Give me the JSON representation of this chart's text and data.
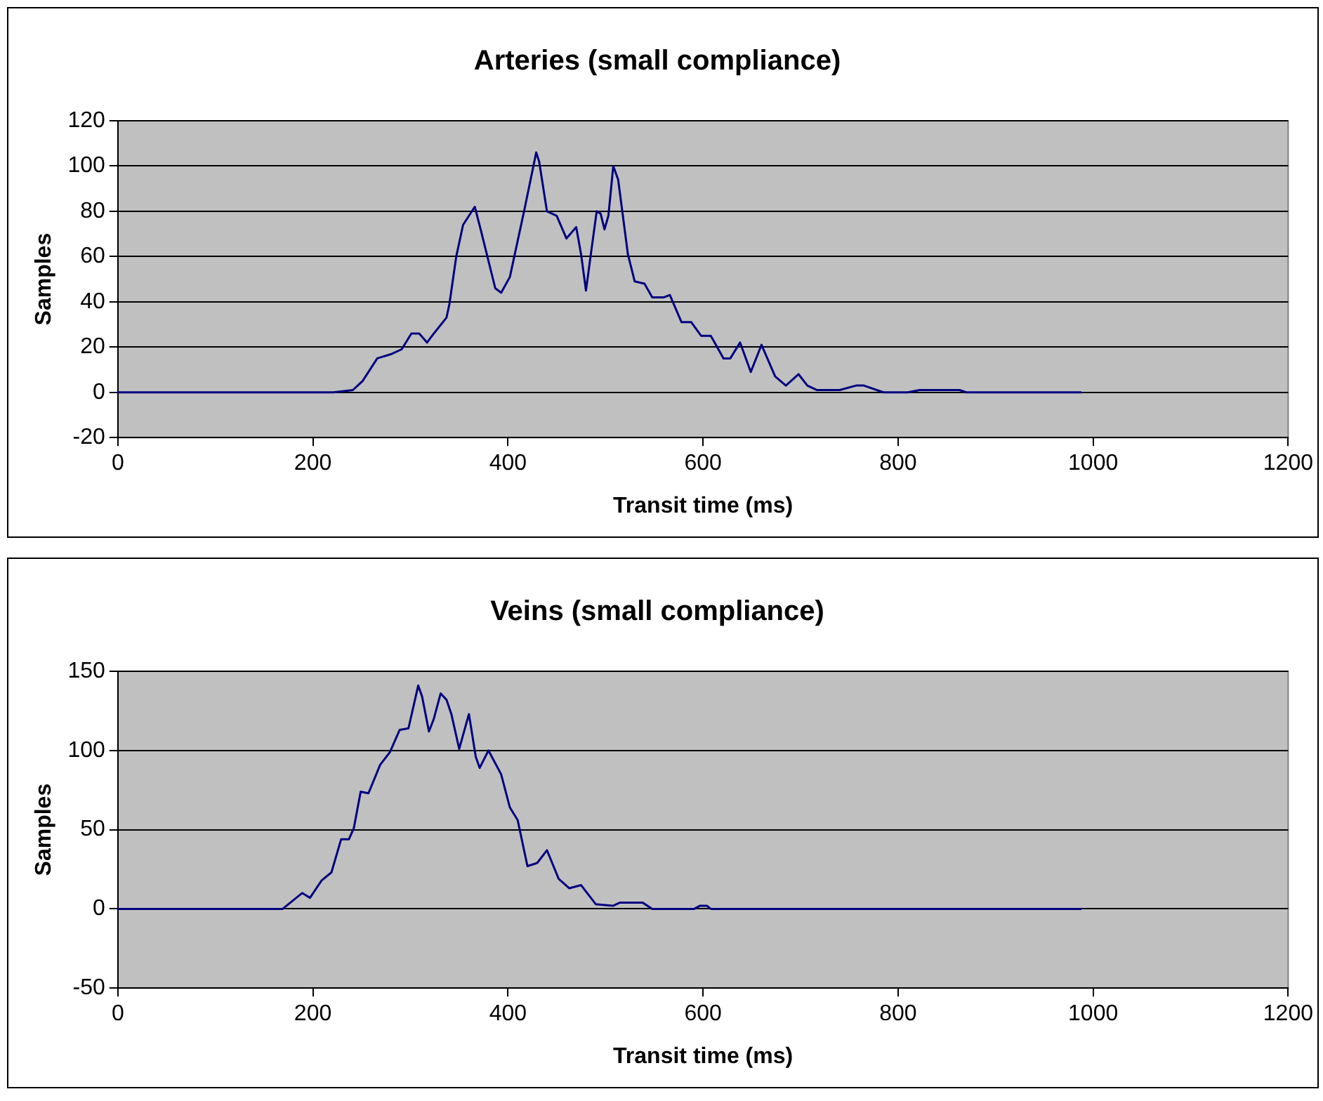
{
  "chart_data": [
    {
      "type": "line",
      "title": "Arteries (small compliance)",
      "xlabel": "Transit time (ms)",
      "ylabel": "Samples",
      "xlim": [
        0,
        1200
      ],
      "xticks": [
        0,
        200,
        400,
        600,
        800,
        1000,
        1200
      ],
      "ylim": [
        -20,
        120
      ],
      "yticks": [
        -20,
        0,
        20,
        40,
        60,
        80,
        100,
        120
      ],
      "grid": "y",
      "legend": false,
      "marker": "none",
      "line_style": "solid",
      "x": [
        0,
        200,
        221,
        241,
        251,
        266,
        281,
        291,
        301,
        309,
        317,
        324,
        337,
        340,
        347,
        354,
        366,
        372,
        387,
        393,
        402,
        417,
        429,
        432,
        440,
        450,
        460,
        470,
        475,
        480,
        485,
        491,
        495,
        499,
        503,
        508,
        513,
        523,
        530,
        540,
        548,
        560,
        566,
        578,
        588,
        598,
        608,
        621,
        628,
        638,
        649,
        660,
        674,
        685,
        698,
        707,
        717,
        740,
        757,
        765,
        785,
        810,
        822,
        863,
        870,
        988
      ],
      "series": [
        {
          "color": "#000080",
          "values": [
            0,
            0,
            0,
            1,
            5,
            15,
            17,
            19,
            26,
            26,
            22,
            26,
            33,
            39,
            60,
            74,
            82,
            72,
            46,
            44,
            51,
            81,
            106,
            102,
            80,
            78,
            68,
            73,
            61,
            45,
            61,
            80,
            79,
            72,
            78,
            100,
            94,
            61,
            49,
            48,
            42,
            42,
            43,
            31,
            31,
            25,
            25,
            15,
            15,
            22,
            9,
            21,
            7,
            3,
            8,
            3,
            1,
            1,
            3,
            3,
            0,
            0,
            1,
            1,
            0,
            0
          ]
        }
      ]
    },
    {
      "type": "line",
      "title": "Veins (small compliance)",
      "xlabel": "Transit time (ms)",
      "ylabel": "Samples",
      "xlim": [
        0,
        1200
      ],
      "xticks": [
        0,
        200,
        400,
        600,
        800,
        1000,
        1200
      ],
      "ylim": [
        -50,
        150
      ],
      "yticks": [
        -50,
        0,
        50,
        100,
        150
      ],
      "grid": "y",
      "legend": false,
      "marker": "none",
      "line_style": "solid",
      "x": [
        0,
        169,
        189,
        197,
        209,
        219,
        229,
        237,
        242,
        249,
        257,
        269,
        279,
        289,
        298,
        308,
        312,
        319,
        324,
        331,
        337,
        342,
        350,
        360,
        367,
        371,
        380,
        393,
        402,
        410,
        420,
        430,
        440,
        452,
        463,
        475,
        490,
        508,
        515,
        538,
        548,
        591,
        597,
        604,
        608,
        988
      ],
      "series": [
        {
          "color": "#000080",
          "values": [
            0,
            0,
            10,
            7,
            18,
            23,
            44,
            44,
            51,
            74,
            73,
            91,
            99,
            113,
            114,
            141,
            134,
            112,
            120,
            136,
            132,
            123,
            101,
            123,
            96,
            89,
            100,
            85,
            64,
            56,
            27,
            29,
            37,
            19,
            13,
            15,
            3,
            2,
            4,
            4,
            0,
            0,
            2,
            2,
            0,
            0
          ]
        }
      ]
    }
  ]
}
